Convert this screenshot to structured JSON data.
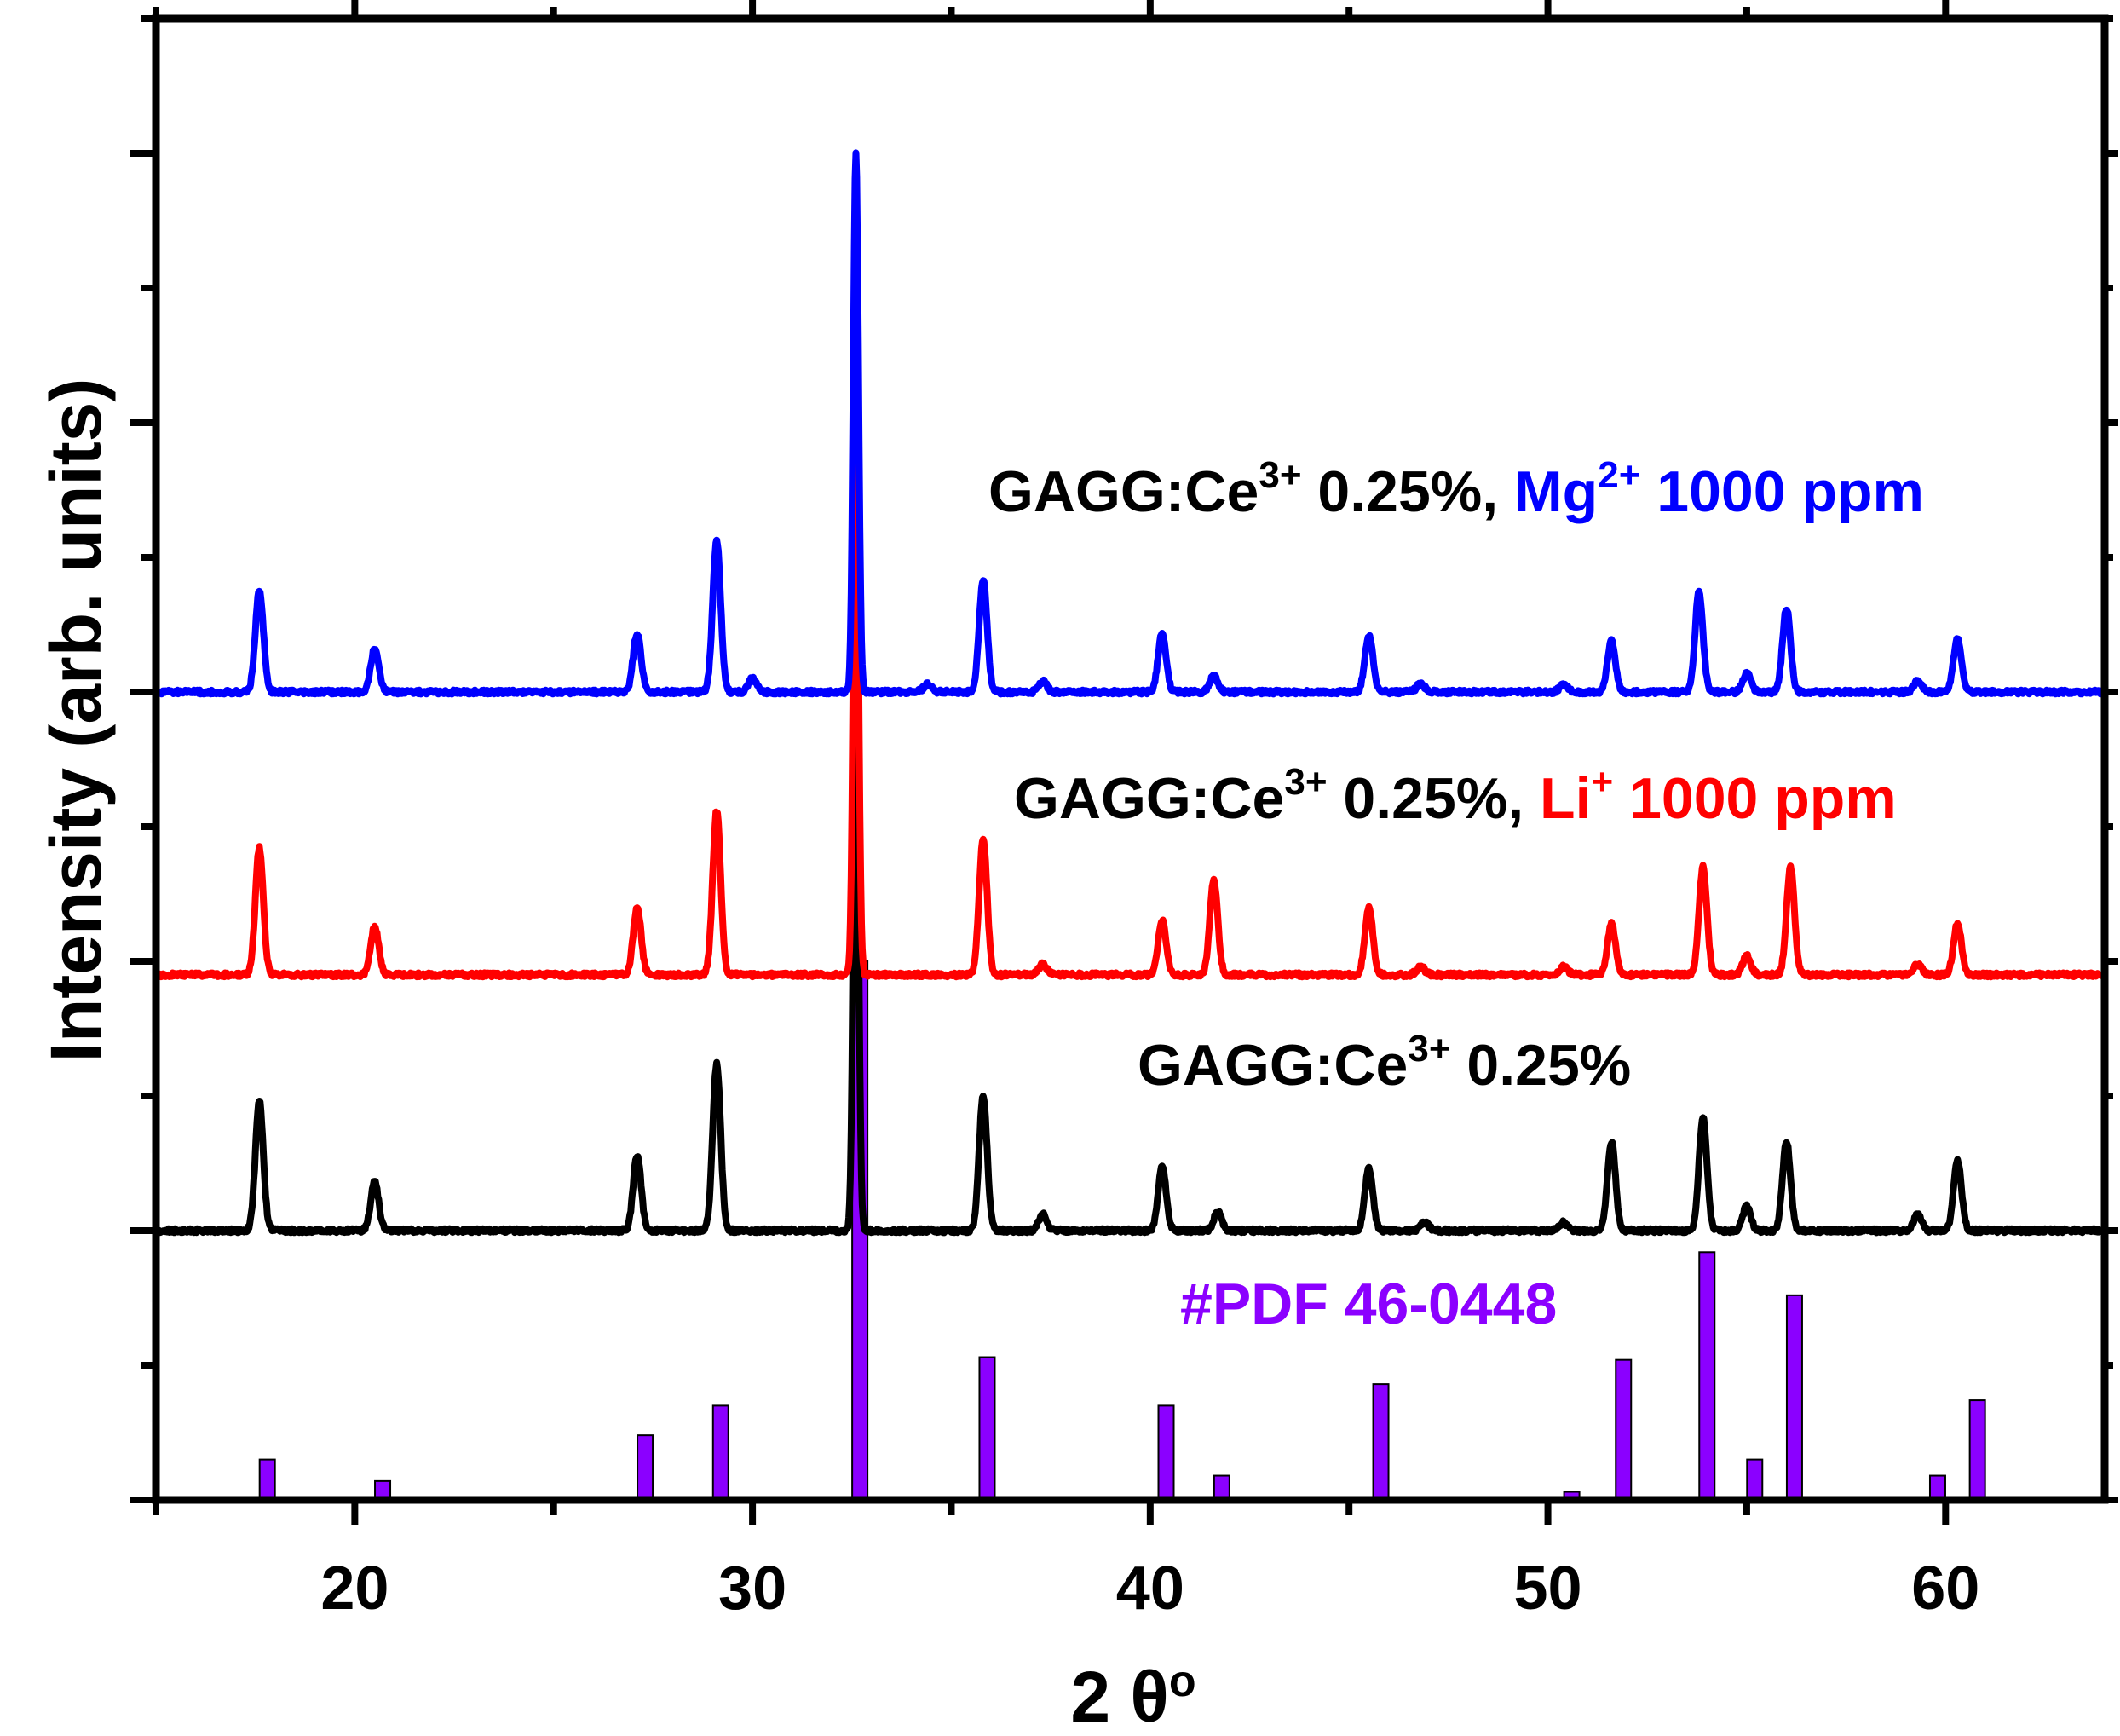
{
  "chart_data": {
    "type": "line",
    "title": "",
    "xlabel": "2 θ",
    "xlabel_sup": "o",
    "ylabel": "Intensity (arb. units)",
    "xlim": [
      15,
      64
    ],
    "ylim": [
      0,
      5.5
    ],
    "xticks": [
      20,
      30,
      40,
      50,
      60
    ],
    "grid": false,
    "legend": "none",
    "series": [
      {
        "name": "GAGG:Ce3+ 0.25%",
        "color": "#000000",
        "baseline": 1.0,
        "peaks": [
          [
            17.6,
            0.48
          ],
          [
            20.5,
            0.18
          ],
          [
            27.1,
            0.28
          ],
          [
            29.1,
            0.62
          ],
          [
            32.6,
            2.0
          ],
          [
            35.8,
            0.5
          ],
          [
            37.3,
            0.06
          ],
          [
            40.3,
            0.24
          ],
          [
            41.7,
            0.07
          ],
          [
            45.5,
            0.23
          ],
          [
            46.9,
            0.03
          ],
          [
            50.4,
            0.03
          ],
          [
            51.6,
            0.33
          ],
          [
            53.9,
            0.42
          ],
          [
            55.0,
            0.09
          ],
          [
            56.0,
            0.33
          ],
          [
            59.3,
            0.06
          ],
          [
            60.3,
            0.26
          ]
        ]
      },
      {
        "name": "GAGG:Ce3+ 0.25%, Li+ 1000 ppm",
        "color": "#ff0000",
        "baseline": 1.95,
        "peaks": [
          [
            17.6,
            0.47
          ],
          [
            20.5,
            0.18
          ],
          [
            27.1,
            0.25
          ],
          [
            29.1,
            0.61
          ],
          [
            32.6,
            2.0
          ],
          [
            35.8,
            0.5
          ],
          [
            37.3,
            0.04
          ],
          [
            40.3,
            0.2
          ],
          [
            41.6,
            0.35
          ],
          [
            45.5,
            0.25
          ],
          [
            46.8,
            0.03
          ],
          [
            50.4,
            0.03
          ],
          [
            51.6,
            0.19
          ],
          [
            53.9,
            0.4
          ],
          [
            55.0,
            0.07
          ],
          [
            56.1,
            0.4
          ],
          [
            59.3,
            0.04
          ],
          [
            60.3,
            0.19
          ]
        ]
      },
      {
        "name": "GAGG:Ce3+ 0.25%, Mg2+ 1000 ppm",
        "color": "#0000ff",
        "baseline": 3.0,
        "peaks": [
          [
            17.6,
            0.38
          ],
          [
            20.5,
            0.16
          ],
          [
            27.1,
            0.22
          ],
          [
            29.1,
            0.56
          ],
          [
            30.0,
            0.05
          ],
          [
            32.6,
            2.0
          ],
          [
            34.4,
            0.03
          ],
          [
            35.8,
            0.42
          ],
          [
            37.3,
            0.04
          ],
          [
            40.3,
            0.22
          ],
          [
            41.6,
            0.06
          ],
          [
            45.5,
            0.21
          ],
          [
            46.8,
            0.03
          ],
          [
            50.4,
            0.03
          ],
          [
            51.6,
            0.19
          ],
          [
            53.8,
            0.37
          ],
          [
            55.0,
            0.07
          ],
          [
            56.0,
            0.31
          ],
          [
            59.3,
            0.04
          ],
          [
            60.3,
            0.2
          ]
        ]
      }
    ],
    "reference": {
      "name": "#PDF 46-0448",
      "color": "#8b00ff",
      "type": "bar",
      "x": [
        17.8,
        20.7,
        27.3,
        29.2,
        32.7,
        35.9,
        37.5,
        40.4,
        41.8,
        45.8,
        47.0,
        50.6,
        51.9,
        54.0,
        55.2,
        56.2,
        59.8,
        60.8,
        63.9
      ],
      "values": [
        0.15,
        0.07,
        0.24,
        0.35,
        2.0,
        0.53,
        0.01,
        0.35,
        0.09,
        0.43,
        0.01,
        0.03,
        0.52,
        0.92,
        0.15,
        0.76,
        0.09,
        0.37,
        0.01
      ]
    },
    "annotations": [
      {
        "parts": [
          {
            "text": "GAGG:Ce",
            "color": "#000000"
          },
          {
            "text": "3+",
            "color": "#000000",
            "sup": true
          },
          {
            "text": " 0.25%, ",
            "color": "#000000"
          },
          {
            "text": "Mg",
            "color": "#0000ff"
          },
          {
            "text": "2+",
            "color": "#0000ff",
            "sup": true
          },
          {
            "text": " 1000 ppm",
            "color": "#0000ff"
          }
        ]
      },
      {
        "parts": [
          {
            "text": "GAGG:Ce",
            "color": "#000000"
          },
          {
            "text": "3+",
            "color": "#000000",
            "sup": true
          },
          {
            "text": " 0.25%, ",
            "color": "#000000"
          },
          {
            "text": "Li",
            "color": "#ff0000"
          },
          {
            "text": "+",
            "color": "#ff0000",
            "sup": true
          },
          {
            "text": " 1000 ppm",
            "color": "#ff0000"
          }
        ]
      },
      {
        "parts": [
          {
            "text": "GAGG:Ce",
            "color": "#000000"
          },
          {
            "text": "3+",
            "color": "#000000",
            "sup": true
          },
          {
            "text": " 0.25%",
            "color": "#000000"
          }
        ]
      },
      {
        "parts": [
          {
            "text": "#PDF 46-0448",
            "color": "#8b00ff"
          }
        ]
      }
    ]
  }
}
